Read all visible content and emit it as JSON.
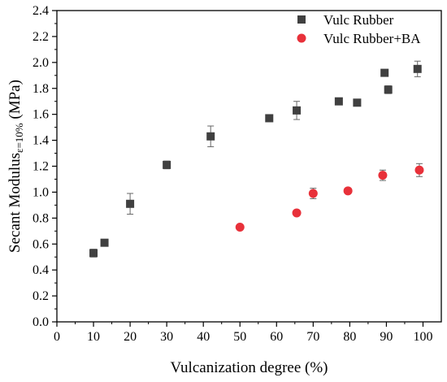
{
  "chart_data": {
    "type": "scatter",
    "xlabel": "Vulcanization degree (%)",
    "ylabel": {
      "main": "Secant Modulus",
      "subscript": "ε=10%",
      "unit": " (MPa)"
    },
    "xlim": [
      0,
      105
    ],
    "ylim": [
      0.0,
      2.4
    ],
    "xticks": [
      0,
      10,
      20,
      30,
      40,
      50,
      60,
      70,
      80,
      90,
      100
    ],
    "xtick_labels": [
      "0",
      "10",
      "20",
      "30",
      "40",
      "50",
      "60",
      "70",
      "80",
      "90",
      "100"
    ],
    "yticks": [
      0.0,
      0.2,
      0.4,
      0.6,
      0.8,
      1.0,
      1.2,
      1.4,
      1.6,
      1.8,
      2.0,
      2.2,
      2.4
    ],
    "ytick_labels": [
      "0.0",
      "0.2",
      "0.4",
      "0.6",
      "0.8",
      "1.0",
      "1.2",
      "1.4",
      "1.6",
      "1.8",
      "2.0",
      "2.2",
      "2.4"
    ],
    "grid": false,
    "legend_position": "top-right",
    "series": [
      {
        "name": "Vulc Rubber",
        "marker": "square",
        "color": "#404040",
        "points": [
          {
            "x": 10,
            "y": 0.53,
            "err": 0.03
          },
          {
            "x": 13,
            "y": 0.61,
            "err": 0.0
          },
          {
            "x": 20,
            "y": 0.91,
            "err": 0.08
          },
          {
            "x": 30,
            "y": 1.21,
            "err": 0.03
          },
          {
            "x": 42,
            "y": 1.43,
            "err": 0.08
          },
          {
            "x": 58,
            "y": 1.57,
            "err": 0.0
          },
          {
            "x": 65.5,
            "y": 1.63,
            "err": 0.07
          },
          {
            "x": 77,
            "y": 1.7,
            "err": 0.0
          },
          {
            "x": 82,
            "y": 1.69,
            "err": 0.0
          },
          {
            "x": 89.5,
            "y": 1.92,
            "err": 0.0
          },
          {
            "x": 90.5,
            "y": 1.79,
            "err": 0.03
          },
          {
            "x": 98.5,
            "y": 1.95,
            "err": 0.06
          }
        ]
      },
      {
        "name": "Vulc Rubber+BA",
        "marker": "circle",
        "color": "#e8313a",
        "points": [
          {
            "x": 50,
            "y": 0.73,
            "err": 0.0
          },
          {
            "x": 65.5,
            "y": 0.84,
            "err": 0.0
          },
          {
            "x": 70,
            "y": 0.99,
            "err": 0.04
          },
          {
            "x": 79.5,
            "y": 1.01,
            "err": 0.02
          },
          {
            "x": 89,
            "y": 1.13,
            "err": 0.04
          },
          {
            "x": 99,
            "y": 1.17,
            "err": 0.05
          }
        ]
      }
    ]
  }
}
